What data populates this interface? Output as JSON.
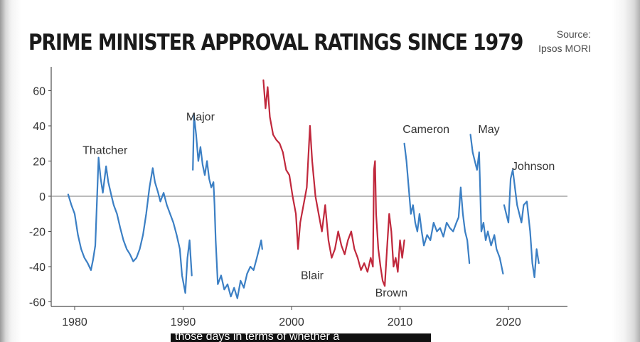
{
  "title": "PRIME MINISTER APPROVAL RATINGS SINCE 1979",
  "source": {
    "line1": "Source:",
    "line2": "Ipsos MORI"
  },
  "caption": "those days in terms of whether a",
  "colors": {
    "conservative": "#3b7fc4",
    "labour": "#c0283c",
    "axis": "#4d4d4d",
    "text": "#333333"
  },
  "chart_data": {
    "type": "line",
    "title": "PRIME MINISTER APPROVAL RATINGS SINCE 1979",
    "xlabel": "",
    "ylabel": "",
    "xlim": [
      1978.5,
      2025.5
    ],
    "ylim": [
      -60,
      68
    ],
    "xticks": [
      1980,
      1990,
      2000,
      2010,
      2020
    ],
    "yticks": [
      60,
      40,
      20,
      0,
      -20,
      -40,
      -60
    ],
    "grid": false,
    "zero_line": true,
    "series": [
      {
        "name": "Thatcher",
        "party": "conservative",
        "label_at": [
          1982.8,
          24
        ],
        "points": [
          [
            1979.4,
            1
          ],
          [
            1979.7,
            -5
          ],
          [
            1980.0,
            -10
          ],
          [
            1980.3,
            -22
          ],
          [
            1980.6,
            -30
          ],
          [
            1980.9,
            -35
          ],
          [
            1981.2,
            -38
          ],
          [
            1981.5,
            -42
          ],
          [
            1981.7,
            -36
          ],
          [
            1981.9,
            -28
          ],
          [
            1982.2,
            22
          ],
          [
            1982.4,
            10
          ],
          [
            1982.6,
            2
          ],
          [
            1982.9,
            17
          ],
          [
            1983.1,
            8
          ],
          [
            1983.4,
            0
          ],
          [
            1983.6,
            -5
          ],
          [
            1983.9,
            -10
          ],
          [
            1984.2,
            -18
          ],
          [
            1984.5,
            -25
          ],
          [
            1984.8,
            -30
          ],
          [
            1985.1,
            -33
          ],
          [
            1985.4,
            -37
          ],
          [
            1985.7,
            -35
          ],
          [
            1986.0,
            -30
          ],
          [
            1986.3,
            -22
          ],
          [
            1986.6,
            -10
          ],
          [
            1986.9,
            5
          ],
          [
            1987.2,
            16
          ],
          [
            1987.4,
            8
          ],
          [
            1987.7,
            2
          ],
          [
            1987.9,
            -3
          ],
          [
            1988.2,
            2
          ],
          [
            1988.5,
            -5
          ],
          [
            1988.8,
            -10
          ],
          [
            1989.1,
            -15
          ],
          [
            1989.4,
            -22
          ],
          [
            1989.7,
            -30
          ],
          [
            1989.9,
            -45
          ],
          [
            1990.2,
            -55
          ],
          [
            1990.4,
            -35
          ],
          [
            1990.6,
            -25
          ],
          [
            1990.8,
            -45
          ]
        ]
      },
      {
        "name": "Major",
        "party": "conservative",
        "label_at": [
          1991.6,
          43
        ],
        "points": [
          [
            1990.9,
            15
          ],
          [
            1991.0,
            46
          ],
          [
            1991.2,
            35
          ],
          [
            1991.4,
            20
          ],
          [
            1991.6,
            28
          ],
          [
            1991.8,
            18
          ],
          [
            1992.0,
            12
          ],
          [
            1992.2,
            20
          ],
          [
            1992.4,
            10
          ],
          [
            1992.6,
            5
          ],
          [
            1992.8,
            8
          ],
          [
            1992.9,
            -5
          ],
          [
            1993.0,
            -25
          ],
          [
            1993.2,
            -50
          ],
          [
            1993.5,
            -45
          ],
          [
            1993.8,
            -53
          ],
          [
            1994.1,
            -50
          ],
          [
            1994.4,
            -57
          ],
          [
            1994.7,
            -52
          ],
          [
            1995.0,
            -58
          ],
          [
            1995.3,
            -48
          ],
          [
            1995.6,
            -52
          ],
          [
            1995.9,
            -44
          ],
          [
            1996.2,
            -40
          ],
          [
            1996.5,
            -42
          ],
          [
            1996.8,
            -35
          ],
          [
            1997.0,
            -30
          ],
          [
            1997.2,
            -25
          ],
          [
            1997.3,
            -30
          ]
        ]
      },
      {
        "name": "Blair",
        "party": "labour",
        "label_at": [
          2001.9,
          -47
        ],
        "points": [
          [
            1997.4,
            66
          ],
          [
            1997.6,
            50
          ],
          [
            1997.8,
            62
          ],
          [
            1998.0,
            45
          ],
          [
            1998.3,
            35
          ],
          [
            1998.6,
            32
          ],
          [
            1998.9,
            30
          ],
          [
            1999.2,
            25
          ],
          [
            1999.5,
            15
          ],
          [
            1999.8,
            12
          ],
          [
            2000.1,
            0
          ],
          [
            2000.4,
            -10
          ],
          [
            2000.6,
            -30
          ],
          [
            2000.8,
            -15
          ],
          [
            2001.1,
            -5
          ],
          [
            2001.4,
            5
          ],
          [
            2001.7,
            40
          ],
          [
            2001.9,
            20
          ],
          [
            2002.2,
            0
          ],
          [
            2002.5,
            -10
          ],
          [
            2002.8,
            -20
          ],
          [
            2003.1,
            -5
          ],
          [
            2003.4,
            -25
          ],
          [
            2003.7,
            -35
          ],
          [
            2004.0,
            -30
          ],
          [
            2004.3,
            -20
          ],
          [
            2004.6,
            -28
          ],
          [
            2004.9,
            -33
          ],
          [
            2005.2,
            -25
          ],
          [
            2005.5,
            -20
          ],
          [
            2005.8,
            -30
          ],
          [
            2006.1,
            -35
          ],
          [
            2006.4,
            -42
          ],
          [
            2006.7,
            -38
          ],
          [
            2007.0,
            -43
          ],
          [
            2007.3,
            -35
          ],
          [
            2007.5,
            -40
          ]
        ]
      },
      {
        "name": "Brown",
        "party": "labour",
        "label_at": [
          2009.2,
          -57
        ],
        "points": [
          [
            2007.5,
            -40
          ],
          [
            2007.6,
            15
          ],
          [
            2007.7,
            20
          ],
          [
            2007.8,
            -10
          ],
          [
            2008.0,
            -30
          ],
          [
            2008.2,
            -40
          ],
          [
            2008.4,
            -48
          ],
          [
            2008.6,
            -51
          ],
          [
            2008.8,
            -30
          ],
          [
            2009.0,
            -10
          ],
          [
            2009.2,
            -20
          ],
          [
            2009.4,
            -40
          ],
          [
            2009.6,
            -35
          ],
          [
            2009.8,
            -43
          ],
          [
            2010.0,
            -25
          ],
          [
            2010.2,
            -35
          ],
          [
            2010.4,
            -25
          ]
        ]
      },
      {
        "name": "Cameron",
        "party": "conservative",
        "label_at": [
          2012.4,
          36
        ],
        "points": [
          [
            2010.4,
            30
          ],
          [
            2010.6,
            20
          ],
          [
            2010.8,
            5
          ],
          [
            2011.0,
            -10
          ],
          [
            2011.2,
            -5
          ],
          [
            2011.4,
            -15
          ],
          [
            2011.6,
            -20
          ],
          [
            2011.8,
            -10
          ],
          [
            2012.0,
            -20
          ],
          [
            2012.2,
            -28
          ],
          [
            2012.5,
            -22
          ],
          [
            2012.8,
            -25
          ],
          [
            2013.1,
            -15
          ],
          [
            2013.4,
            -20
          ],
          [
            2013.7,
            -18
          ],
          [
            2014.0,
            -23
          ],
          [
            2014.3,
            -15
          ],
          [
            2014.6,
            -18
          ],
          [
            2014.9,
            -20
          ],
          [
            2015.2,
            -15
          ],
          [
            2015.4,
            -12
          ],
          [
            2015.6,
            5
          ],
          [
            2015.8,
            -10
          ],
          [
            2016.0,
            -20
          ],
          [
            2016.2,
            -25
          ],
          [
            2016.4,
            -38
          ]
        ]
      },
      {
        "name": "May",
        "party": "conservative",
        "label_at": [
          2018.2,
          36
        ],
        "points": [
          [
            2016.5,
            35
          ],
          [
            2016.7,
            25
          ],
          [
            2016.9,
            20
          ],
          [
            2017.1,
            15
          ],
          [
            2017.3,
            25
          ],
          [
            2017.5,
            -20
          ],
          [
            2017.7,
            -15
          ],
          [
            2017.9,
            -25
          ],
          [
            2018.1,
            -20
          ],
          [
            2018.4,
            -28
          ],
          [
            2018.7,
            -22
          ],
          [
            2018.9,
            -30
          ],
          [
            2019.2,
            -35
          ],
          [
            2019.5,
            -44
          ]
        ]
      },
      {
        "name": "Johnson",
        "party": "conservative",
        "label_at": [
          2022.3,
          15
        ],
        "points": [
          [
            2019.6,
            -5
          ],
          [
            2019.8,
            -10
          ],
          [
            2020.0,
            -15
          ],
          [
            2020.2,
            10
          ],
          [
            2020.4,
            15
          ],
          [
            2020.6,
            5
          ],
          [
            2020.8,
            -5
          ],
          [
            2021.0,
            -10
          ],
          [
            2021.2,
            -15
          ],
          [
            2021.4,
            -5
          ],
          [
            2021.7,
            -3
          ],
          [
            2022.0,
            -20
          ],
          [
            2022.2,
            -38
          ],
          [
            2022.4,
            -46
          ],
          [
            2022.6,
            -30
          ],
          [
            2022.8,
            -38
          ]
        ]
      }
    ]
  }
}
